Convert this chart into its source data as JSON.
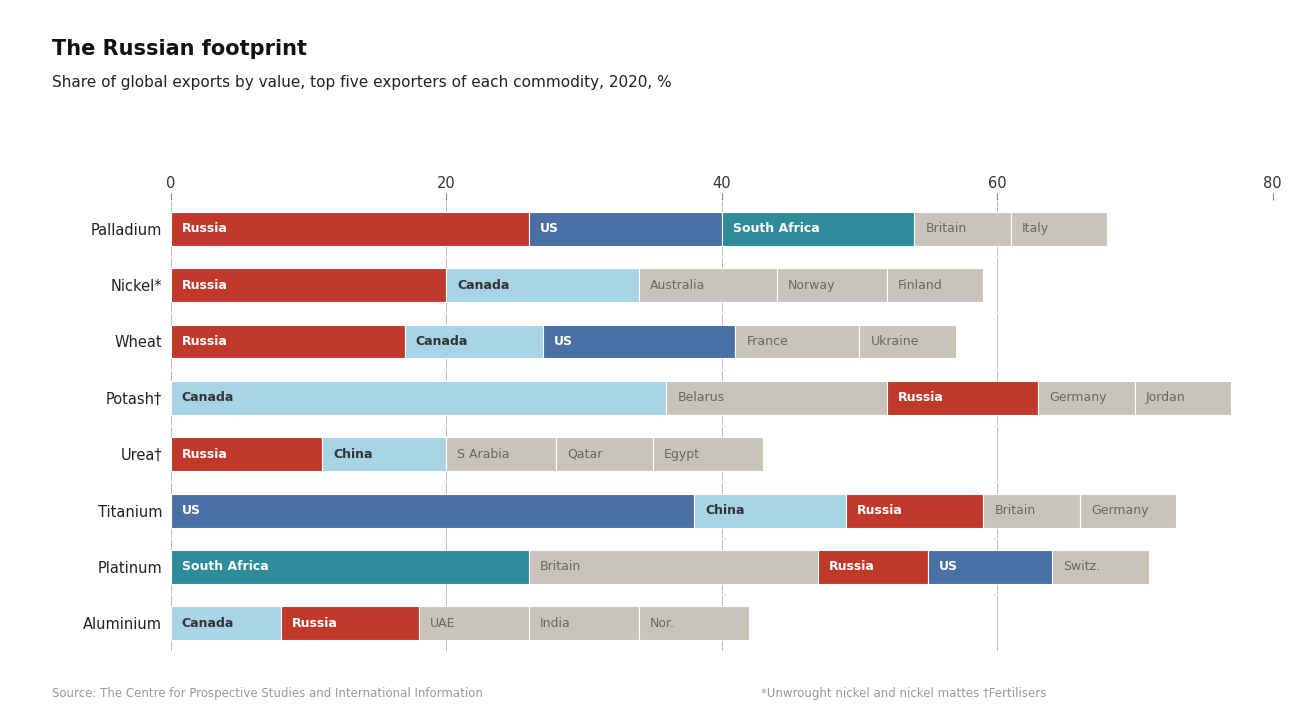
{
  "title_main": "The Russian footprint",
  "title_sub": "Share of global exports by value, top five exporters of each commodity, 2020, %",
  "source": "Source: The Centre for Prospective Studies and International Information",
  "footnote": "*Unwrought nickel and nickel mattes †Fertilisers",
  "xlim": [
    0,
    80
  ],
  "xticks": [
    0,
    20,
    40,
    60,
    80
  ],
  "commodities": [
    "Palladium",
    "Nickel*",
    "Wheat",
    "Potash†",
    "Urea†",
    "Titanium",
    "Platinum",
    "Aluminium"
  ],
  "bars": [
    {
      "commodity": "Palladium",
      "segments": [
        {
          "label": "Russia",
          "value": 26,
          "color": "#c0392b",
          "text_color": "white",
          "bold": true
        },
        {
          "label": "US",
          "value": 14,
          "color": "#4a6fa5",
          "text_color": "white",
          "bold": true
        },
        {
          "label": "South Africa",
          "value": 14,
          "color": "#2e8b9a",
          "text_color": "white",
          "bold": true
        },
        {
          "label": "Britain",
          "value": 7,
          "color": "#c8c4bc",
          "text_color": "#666666",
          "bold": false
        },
        {
          "label": "Italy",
          "value": 7,
          "color": "#c8c4bc",
          "text_color": "#666666",
          "bold": false
        }
      ]
    },
    {
      "commodity": "Nickel*",
      "segments": [
        {
          "label": "Russia",
          "value": 20,
          "color": "#c0392b",
          "text_color": "white",
          "bold": true
        },
        {
          "label": "Canada",
          "value": 14,
          "color": "#a8d4e6",
          "text_color": "#333333",
          "bold": true
        },
        {
          "label": "Australia",
          "value": 10,
          "color": "#c8c4bc",
          "text_color": "#666666",
          "bold": false
        },
        {
          "label": "Norway",
          "value": 8,
          "color": "#c8c4bc",
          "text_color": "#666666",
          "bold": false
        },
        {
          "label": "Finland",
          "value": 7,
          "color": "#c8c4bc",
          "text_color": "#666666",
          "bold": false
        }
      ]
    },
    {
      "commodity": "Wheat",
      "segments": [
        {
          "label": "Russia",
          "value": 17,
          "color": "#c0392b",
          "text_color": "white",
          "bold": true
        },
        {
          "label": "Canada",
          "value": 10,
          "color": "#a8d4e6",
          "text_color": "#333333",
          "bold": true
        },
        {
          "label": "US",
          "value": 14,
          "color": "#4a6fa5",
          "text_color": "white",
          "bold": true
        },
        {
          "label": "France",
          "value": 9,
          "color": "#c8c4bc",
          "text_color": "#666666",
          "bold": false
        },
        {
          "label": "Ukraine",
          "value": 7,
          "color": "#c8c4bc",
          "text_color": "#666666",
          "bold": false
        }
      ]
    },
    {
      "commodity": "Potash†",
      "segments": [
        {
          "label": "Canada",
          "value": 36,
          "color": "#a8d4e6",
          "text_color": "#333333",
          "bold": true
        },
        {
          "label": "Belarus",
          "value": 16,
          "color": "#c8c4bc",
          "text_color": "#666666",
          "bold": false
        },
        {
          "label": "Russia",
          "value": 11,
          "color": "#c0392b",
          "text_color": "white",
          "bold": true
        },
        {
          "label": "Germany",
          "value": 7,
          "color": "#c8c4bc",
          "text_color": "#666666",
          "bold": false
        },
        {
          "label": "Jordan",
          "value": 7,
          "color": "#c8c4bc",
          "text_color": "#666666",
          "bold": false
        }
      ]
    },
    {
      "commodity": "Urea†",
      "segments": [
        {
          "label": "Russia",
          "value": 11,
          "color": "#c0392b",
          "text_color": "white",
          "bold": true
        },
        {
          "label": "China",
          "value": 9,
          "color": "#a8d4e6",
          "text_color": "#333333",
          "bold": true
        },
        {
          "label": "S Arabia",
          "value": 8,
          "color": "#c8c4bc",
          "text_color": "#666666",
          "bold": false
        },
        {
          "label": "Qatar",
          "value": 7,
          "color": "#c8c4bc",
          "text_color": "#666666",
          "bold": false
        },
        {
          "label": "Egypt",
          "value": 8,
          "color": "#c8c4bc",
          "text_color": "#666666",
          "bold": false
        }
      ]
    },
    {
      "commodity": "Titanium",
      "segments": [
        {
          "label": "US",
          "value": 38,
          "color": "#4a6fa5",
          "text_color": "white",
          "bold": true
        },
        {
          "label": "China",
          "value": 11,
          "color": "#a8d4e6",
          "text_color": "#333333",
          "bold": true
        },
        {
          "label": "Russia",
          "value": 10,
          "color": "#c0392b",
          "text_color": "white",
          "bold": true
        },
        {
          "label": "Britain",
          "value": 7,
          "color": "#c8c4bc",
          "text_color": "#666666",
          "bold": false
        },
        {
          "label": "Germany",
          "value": 7,
          "color": "#c8c4bc",
          "text_color": "#666666",
          "bold": false
        }
      ]
    },
    {
      "commodity": "Platinum",
      "segments": [
        {
          "label": "South Africa",
          "value": 26,
          "color": "#2e8b9a",
          "text_color": "white",
          "bold": true
        },
        {
          "label": "Britain",
          "value": 21,
          "color": "#c8c4bc",
          "text_color": "#666666",
          "bold": false
        },
        {
          "label": "Russia",
          "value": 8,
          "color": "#c0392b",
          "text_color": "white",
          "bold": true
        },
        {
          "label": "US",
          "value": 9,
          "color": "#4a6fa5",
          "text_color": "white",
          "bold": true
        },
        {
          "label": "Switz.",
          "value": 7,
          "color": "#c8c4bc",
          "text_color": "#666666",
          "bold": false
        }
      ]
    },
    {
      "commodity": "Aluminium",
      "segments": [
        {
          "label": "Canada",
          "value": 8,
          "color": "#a8d4e6",
          "text_color": "#333333",
          "bold": true
        },
        {
          "label": "Russia",
          "value": 10,
          "color": "#c0392b",
          "text_color": "white",
          "bold": true
        },
        {
          "label": "UAE",
          "value": 8,
          "color": "#c8c4bc",
          "text_color": "#666666",
          "bold": false
        },
        {
          "label": "India",
          "value": 8,
          "color": "#c8c4bc",
          "text_color": "#666666",
          "bold": false
        },
        {
          "label": "Nor.",
          "value": 8,
          "color": "#c8c4bc",
          "text_color": "#666666",
          "bold": false
        }
      ]
    }
  ],
  "accent_color": "#c0392b",
  "background_color": "#ffffff"
}
